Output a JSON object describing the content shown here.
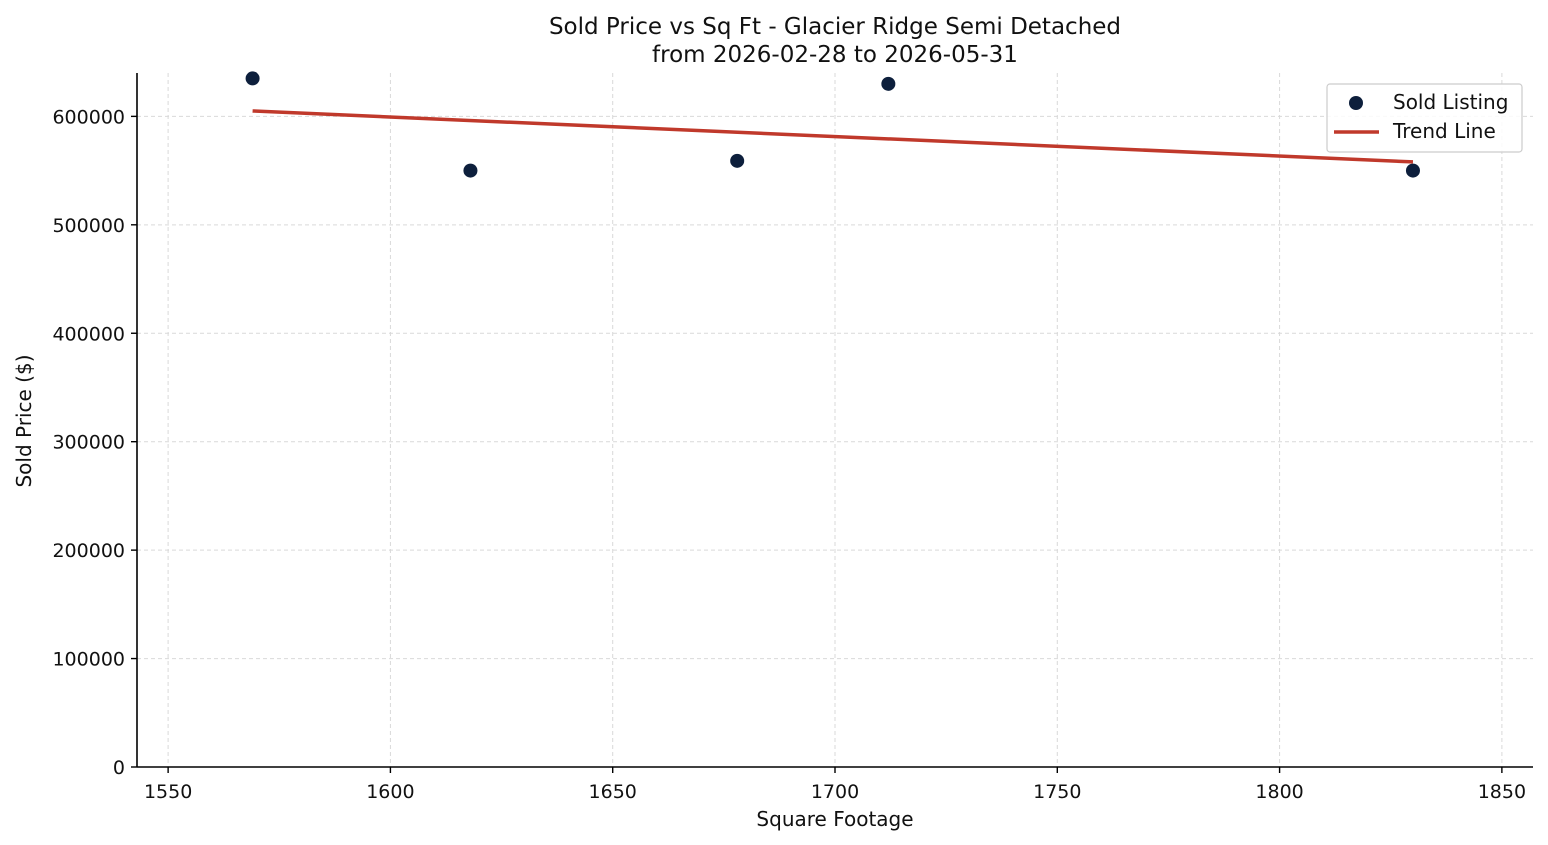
{
  "chart_data": {
    "type": "scatter",
    "title": [
      "Sold Price vs Sq Ft - Glacier Ridge Semi Detached",
      "from 2026-02-28 to 2026-05-31"
    ],
    "xlabel": "Square Footage",
    "ylabel": "Sold Price ($)",
    "xlim": [
      1543,
      1857
    ],
    "ylim": [
      0,
      640000
    ],
    "xticks": [
      1550,
      1600,
      1650,
      1700,
      1750,
      1800,
      1850
    ],
    "yticks": [
      0,
      100000,
      200000,
      300000,
      400000,
      500000,
      600000
    ],
    "grid": true,
    "legend_position": "top-right",
    "series": [
      {
        "name": "Sold Listing",
        "kind": "scatter",
        "color": "#0d1f3c",
        "x": [
          1569,
          1618,
          1678,
          1712,
          1830
        ],
        "y": [
          635000,
          550000,
          559000,
          630000,
          550000
        ]
      },
      {
        "name": "Trend Line",
        "kind": "line",
        "color": "#c0392b",
        "x": [
          1569,
          1830
        ],
        "y": [
          605000,
          558000
        ]
      }
    ]
  }
}
